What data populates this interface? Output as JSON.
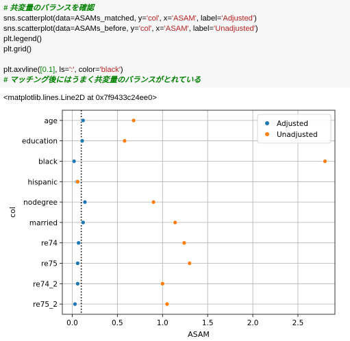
{
  "code": {
    "lines": [
      [
        {
          "t": "# 共変量のバランスを確認",
          "c": "comment"
        }
      ],
      [
        {
          "t": "sns.scatterplot(data=ASAMs_matched, y=",
          "c": ""
        },
        {
          "t": "'col'",
          "c": "str"
        },
        {
          "t": ", x=",
          "c": ""
        },
        {
          "t": "'ASAM'",
          "c": "str"
        },
        {
          "t": ", label=",
          "c": ""
        },
        {
          "t": "'Adjusted'",
          "c": "str"
        },
        {
          "t": ")",
          "c": ""
        }
      ],
      [
        {
          "t": "sns.scatterplot(data=ASAMs_before, y=",
          "c": ""
        },
        {
          "t": "'col'",
          "c": "str"
        },
        {
          "t": ", x=",
          "c": ""
        },
        {
          "t": "'ASAM'",
          "c": "str"
        },
        {
          "t": ", label=",
          "c": ""
        },
        {
          "t": "'Unadjusted'",
          "c": "str"
        },
        {
          "t": ")",
          "c": ""
        }
      ],
      [
        {
          "t": "plt.legend()",
          "c": ""
        }
      ],
      [
        {
          "t": "plt.grid()",
          "c": ""
        }
      ],
      [],
      [
        {
          "t": "plt.axvline(",
          "c": ""
        },
        {
          "t": "[0.1]",
          "c": "num"
        },
        {
          "t": ", ls=",
          "c": ""
        },
        {
          "t": "':'",
          "c": "str"
        },
        {
          "t": ", color=",
          "c": ""
        },
        {
          "t": "'black'",
          "c": "str"
        },
        {
          "t": ")",
          "c": ""
        }
      ],
      [
        {
          "t": "# マッチング後にはうまく共変量のバランスがとれている",
          "c": "comment"
        }
      ]
    ]
  },
  "output_text": "<matplotlib.lines.Line2D at 0x7f9433c24ee0>",
  "chart_data": {
    "type": "scatter",
    "categories": [
      "age",
      "education",
      "black",
      "hispanic",
      "nodegree",
      "married",
      "re74",
      "re75",
      "re74_2",
      "re75_2"
    ],
    "series": [
      {
        "name": "Adjusted",
        "color": "#1f77b4",
        "x": [
          0.12,
          0.11,
          0.02,
          0.05,
          0.14,
          0.12,
          0.07,
          0.06,
          0.06,
          0.03
        ]
      },
      {
        "name": "Unadjusted",
        "color": "#ff7f0e",
        "x": [
          0.68,
          0.58,
          2.8,
          0.06,
          0.9,
          1.14,
          1.24,
          1.3,
          1.0,
          1.05
        ]
      }
    ],
    "xlabel": "ASAM",
    "ylabel": "col",
    "xlim": [
      -0.11,
      2.91
    ],
    "xticks": [
      0.0,
      0.5,
      1.0,
      1.5,
      2.0,
      2.5
    ],
    "xtick_labels": [
      "0.0",
      "0.5",
      "1.0",
      "1.5",
      "2.0",
      "2.5"
    ],
    "axvline": {
      "x": 0.1,
      "style": "dotted",
      "color": "#000000"
    },
    "grid": true,
    "legend_position": "top-right"
  }
}
